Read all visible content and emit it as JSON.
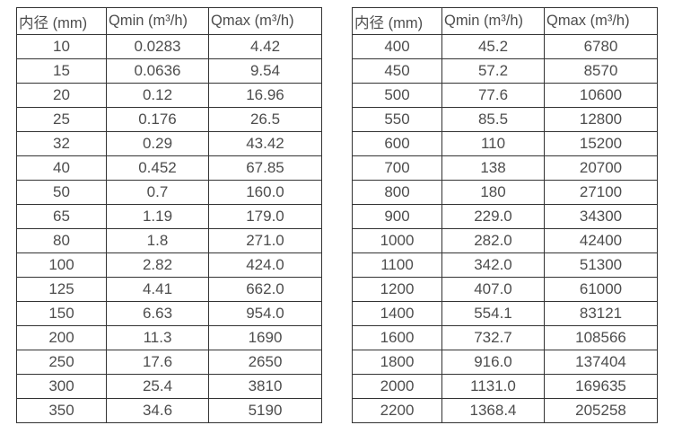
{
  "colors": {
    "border": "#333333",
    "text": "#4d4d4d",
    "background": "#ffffff"
  },
  "left_table": {
    "headers": [
      "内径 (mm)",
      "Qmin (m³/h)",
      "Qmax (m³/h)"
    ],
    "rows": [
      [
        "10",
        "0.0283",
        "4.42"
      ],
      [
        "15",
        "0.0636",
        "9.54"
      ],
      [
        "20",
        "0.12",
        "16.96"
      ],
      [
        "25",
        "0.176",
        "26.5"
      ],
      [
        "32",
        "0.29",
        "43.42"
      ],
      [
        "40",
        "0.452",
        "67.85"
      ],
      [
        "50",
        "0.7",
        "160.0"
      ],
      [
        "65",
        "1.19",
        "179.0"
      ],
      [
        "80",
        "1.8",
        "271.0"
      ],
      [
        "100",
        "2.82",
        "424.0"
      ],
      [
        "125",
        "4.41",
        "662.0"
      ],
      [
        "150",
        "6.63",
        "954.0"
      ],
      [
        "200",
        "11.3",
        "1690"
      ],
      [
        "250",
        "17.6",
        "2650"
      ],
      [
        "300",
        "25.4",
        "3810"
      ],
      [
        "350",
        "34.6",
        "5190"
      ]
    ]
  },
  "right_table": {
    "headers": [
      "内径 (mm)",
      "Qmin (m³/h)",
      "Qmax (m³/h)"
    ],
    "rows": [
      [
        "400",
        "45.2",
        "6780"
      ],
      [
        "450",
        "57.2",
        "8570"
      ],
      [
        "500",
        "77.6",
        "10600"
      ],
      [
        "550",
        "85.5",
        "12800"
      ],
      [
        "600",
        "110",
        "15200"
      ],
      [
        "700",
        "138",
        "20700"
      ],
      [
        "800",
        "180",
        "27100"
      ],
      [
        "900",
        "229.0",
        "34300"
      ],
      [
        "1000",
        "282.0",
        "42400"
      ],
      [
        "1100",
        "342.0",
        "51300"
      ],
      [
        "1200",
        "407.0",
        "61000"
      ],
      [
        "1400",
        "554.1",
        "83121"
      ],
      [
        "1600",
        "732.7",
        "108566"
      ],
      [
        "1800",
        "916.0",
        "137404"
      ],
      [
        "2000",
        "1131.0",
        "169635"
      ],
      [
        "2200",
        "1368.4",
        "205258"
      ]
    ]
  }
}
